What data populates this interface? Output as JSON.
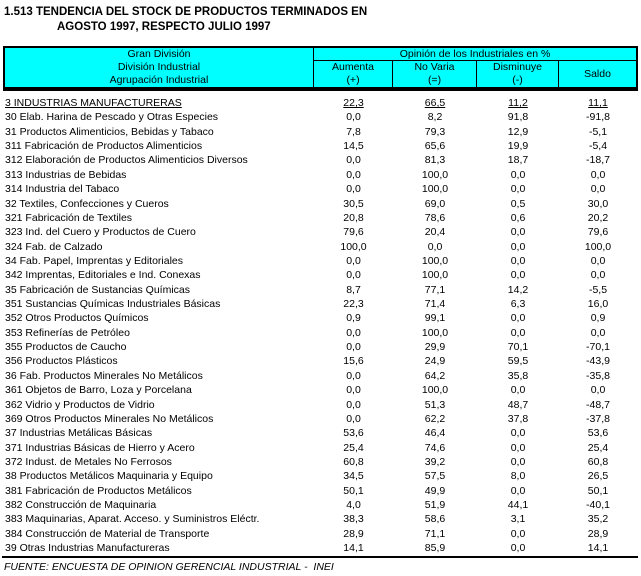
{
  "title": {
    "line1": "1.513 TENDENCIA DEL STOCK DE PRODUCTOS TERMINADOS EN",
    "line2": "AGOSTO 1997, RESPECTO JULIO 1997"
  },
  "table": {
    "header": {
      "left_lines": [
        "Gran División",
        "División Industrial",
        "Agrupación Industrial"
      ],
      "opinion_title": "Opinión de los Industriales en %",
      "columns": [
        {
          "label": "Aumenta",
          "symbol": "(+)"
        },
        {
          "label": "No Varia",
          "symbol": "(=)"
        },
        {
          "label": "Disminuye",
          "symbol": "(-)"
        },
        {
          "label": "Saldo",
          "symbol": ""
        }
      ]
    },
    "rows": [
      {
        "label": "3 INDUSTRIAS MANUFACTURERAS",
        "aumenta": "22,3",
        "no_varia": "66,5",
        "disminuye": "11,2",
        "saldo": "11,1",
        "emphasis": true
      },
      {
        "label": "30 Elab. Harina de Pescado y Otras Especies",
        "aumenta": "0,0",
        "no_varia": "8,2",
        "disminuye": "91,8",
        "saldo": "-91,8"
      },
      {
        "label": "31 Productos Alimenticios, Bebidas y Tabaco",
        "aumenta": "7,8",
        "no_varia": "79,3",
        "disminuye": "12,9",
        "saldo": "-5,1"
      },
      {
        "label": "311 Fabricación de Productos Alimenticios",
        "aumenta": "14,5",
        "no_varia": "65,6",
        "disminuye": "19,9",
        "saldo": "-5,4"
      },
      {
        "label": "312 Elaboración de Productos Alimenticios Diversos",
        "aumenta": "0,0",
        "no_varia": "81,3",
        "disminuye": "18,7",
        "saldo": "-18,7"
      },
      {
        "label": "313 Industrias de Bebidas",
        "aumenta": "0,0",
        "no_varia": "100,0",
        "disminuye": "0,0",
        "saldo": "0,0"
      },
      {
        "label": "314 Industria del Tabaco",
        "aumenta": "0,0",
        "no_varia": "100,0",
        "disminuye": "0,0",
        "saldo": "0,0"
      },
      {
        "label": "32 Textiles, Confecciones y Cueros",
        "aumenta": "30,5",
        "no_varia": "69,0",
        "disminuye": "0,5",
        "saldo": "30,0"
      },
      {
        "label": "321 Fabricación de Textiles",
        "aumenta": "20,8",
        "no_varia": "78,6",
        "disminuye": "0,6",
        "saldo": "20,2"
      },
      {
        "label": "323 Ind. del Cuero y Productos de Cuero",
        "aumenta": "79,6",
        "no_varia": "20,4",
        "disminuye": "0,0",
        "saldo": "79,6"
      },
      {
        "label": "324 Fab. de Calzado",
        "aumenta": "100,0",
        "no_varia": "0,0",
        "disminuye": "0,0",
        "saldo": "100,0"
      },
      {
        "label": "34 Fab. Papel, Imprentas y Editoriales",
        "aumenta": "0,0",
        "no_varia": "100,0",
        "disminuye": "0,0",
        "saldo": "0,0"
      },
      {
        "label": "342 Imprentas, Editoriales e Ind. Conexas",
        "aumenta": "0,0",
        "no_varia": "100,0",
        "disminuye": "0,0",
        "saldo": "0,0"
      },
      {
        "label": "35 Fabricación de Sustancias Químicas",
        "aumenta": "8,7",
        "no_varia": "77,1",
        "disminuye": "14,2",
        "saldo": "-5,5"
      },
      {
        "label": "351 Sustancias Químicas Industriales Básicas",
        "aumenta": "22,3",
        "no_varia": "71,4",
        "disminuye": "6,3",
        "saldo": "16,0"
      },
      {
        "label": "352 Otros Productos Químicos",
        "aumenta": "0,9",
        "no_varia": "99,1",
        "disminuye": "0,0",
        "saldo": "0,9"
      },
      {
        "label": "353 Refinerías de Petróleo",
        "aumenta": "0,0",
        "no_varia": "100,0",
        "disminuye": "0,0",
        "saldo": "0,0"
      },
      {
        "label": "355 Productos de Caucho",
        "aumenta": "0,0",
        "no_varia": "29,9",
        "disminuye": "70,1",
        "saldo": "-70,1"
      },
      {
        "label": "356 Productos Plásticos",
        "aumenta": "15,6",
        "no_varia": "24,9",
        "disminuye": "59,5",
        "saldo": "-43,9"
      },
      {
        "label": "36 Fab. Productos Minerales No Metálicos",
        "aumenta": "0,0",
        "no_varia": "64,2",
        "disminuye": "35,8",
        "saldo": "-35,8"
      },
      {
        "label": "361 Objetos de Barro, Loza y Porcelana",
        "aumenta": "0,0",
        "no_varia": "100,0",
        "disminuye": "0,0",
        "saldo": "0,0"
      },
      {
        "label": "362 Vidrio y Productos de Vidrio",
        "aumenta": "0,0",
        "no_varia": "51,3",
        "disminuye": "48,7",
        "saldo": "-48,7"
      },
      {
        "label": "369 Otros Productos Minerales No Metálicos",
        "aumenta": "0,0",
        "no_varia": "62,2",
        "disminuye": "37,8",
        "saldo": "-37,8"
      },
      {
        "label": "37 Industrias Metálicas Básicas",
        "aumenta": "53,6",
        "no_varia": "46,4",
        "disminuye": "0,0",
        "saldo": "53,6"
      },
      {
        "label": "371 Industrias Básicas de Hierro y Acero",
        "aumenta": "25,4",
        "no_varia": "74,6",
        "disminuye": "0,0",
        "saldo": "25,4"
      },
      {
        "label": "372 Indust. de Metales No Ferrosos",
        "aumenta": "60,8",
        "no_varia": "39,2",
        "disminuye": "0,0",
        "saldo": "60,8"
      },
      {
        "label": "38 Productos Metálicos Maquinaria y Equipo",
        "aumenta": "34,5",
        "no_varia": "57,5",
        "disminuye": "8,0",
        "saldo": "26,5"
      },
      {
        "label": "381 Fabricación de Productos Metálicos",
        "aumenta": "50,1",
        "no_varia": "49,9",
        "disminuye": "0,0",
        "saldo": "50,1"
      },
      {
        "label": "382 Construcción de Maquinaria",
        "aumenta": "4,0",
        "no_varia": "51,9",
        "disminuye": "44,1",
        "saldo": "-40,1"
      },
      {
        "label": "383 Maquinarias, Aparat. Acceso. y Suministros Eléctr.",
        "aumenta": "38,3",
        "no_varia": "58,6",
        "disminuye": "3,1",
        "saldo": "35,2"
      },
      {
        "label": "384 Construcción de Material de Transporte",
        "aumenta": "28,9",
        "no_varia": "71,1",
        "disminuye": "0,0",
        "saldo": "28,9"
      },
      {
        "label": "39 Otras Industrias Manufactureras",
        "aumenta": "14,1",
        "no_varia": "85,9",
        "disminuye": "0,0",
        "saldo": "14,1"
      }
    ]
  },
  "footer": {
    "source": "FUENTE: ENCUESTA DE OPINION GERENCIAL INDUSTRIAL -  INEI"
  },
  "colors": {
    "header_bg": "#00FFFF",
    "border": "#000000",
    "text": "#000000",
    "background": "#FFFFFF"
  }
}
